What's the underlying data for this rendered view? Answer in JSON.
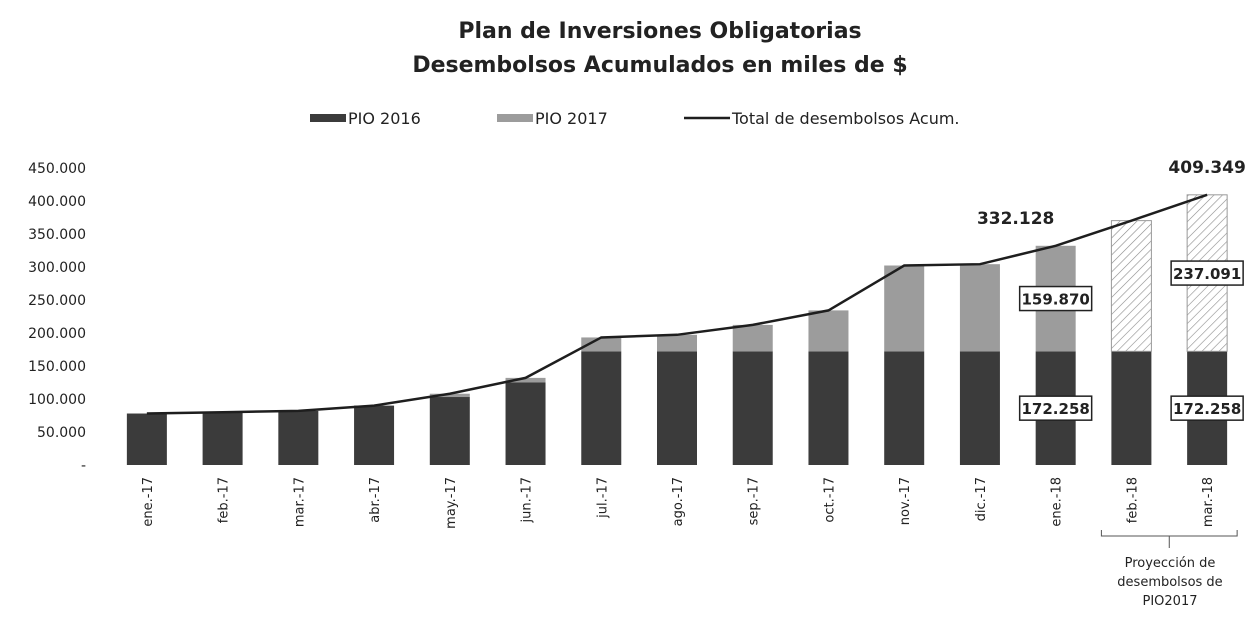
{
  "chart_data": {
    "type": "stacked_bar_line",
    "title": "Plan de Inversiones Obligatorias",
    "subtitle": "Desembolsos Acumulados en miles de $",
    "categories": [
      "ene.-17",
      "feb.-17",
      "mar.-17",
      "abr.-17",
      "may.-17",
      "jun.-17",
      "jul.-17",
      "ago.-17",
      "sep.-17",
      "oct.-17",
      "nov.-17",
      "dic.-17",
      "ene.-18",
      "feb.-18",
      "mar.-18"
    ],
    "series": [
      {
        "name": "PIO 2016",
        "color": "#3b3b3b",
        "kind": "bar",
        "values": [
          78000,
          80000,
          82000,
          90000,
          103000,
          125000,
          172258,
          172258,
          172258,
          172258,
          172258,
          172258,
          172258,
          172258,
          172258
        ],
        "value_labels": [
          null,
          null,
          null,
          null,
          null,
          null,
          null,
          null,
          null,
          null,
          null,
          null,
          "172.258",
          null,
          "172.258"
        ]
      },
      {
        "name": "PIO 2017",
        "color": "#9c9c9c",
        "kind": "bar",
        "values": [
          0,
          0,
          0,
          0,
          5000,
          7000,
          21000,
          25000,
          40000,
          62000,
          130000,
          132000,
          159870,
          198000,
          237091
        ],
        "value_labels": [
          null,
          null,
          null,
          null,
          null,
          null,
          null,
          null,
          null,
          null,
          null,
          null,
          "159.870",
          null,
          "237.091"
        ],
        "hatched": [
          false,
          false,
          false,
          false,
          false,
          false,
          false,
          false,
          false,
          false,
          false,
          false,
          false,
          true,
          true
        ]
      },
      {
        "name": "Total de desembolsos Acum.",
        "color": "#1e1e1e",
        "kind": "line",
        "values": [
          78000,
          80000,
          82000,
          90000,
          108000,
          132000,
          193258,
          197258,
          212258,
          234258,
          302258,
          304258,
          332128,
          370258,
          409349
        ],
        "value_labels": [
          null,
          null,
          null,
          null,
          null,
          null,
          null,
          null,
          null,
          null,
          null,
          null,
          "332.128",
          null,
          "409.349"
        ]
      }
    ],
    "ylim": [
      0,
      450000
    ],
    "yticks": [
      {
        "value": 0,
        "label": "-"
      },
      {
        "value": 50000,
        "label": "50.000"
      },
      {
        "value": 100000,
        "label": "100.000"
      },
      {
        "value": 150000,
        "label": "150.000"
      },
      {
        "value": 200000,
        "label": "200.000"
      },
      {
        "value": 250000,
        "label": "250.000"
      },
      {
        "value": 300000,
        "label": "300.000"
      },
      {
        "value": 350000,
        "label": "350.000"
      },
      {
        "value": 400000,
        "label": "400.000"
      },
      {
        "value": 450000,
        "label": "450.000"
      }
    ],
    "annotation": "Proyección de desembolsos de PIO2017",
    "legend": "top"
  }
}
